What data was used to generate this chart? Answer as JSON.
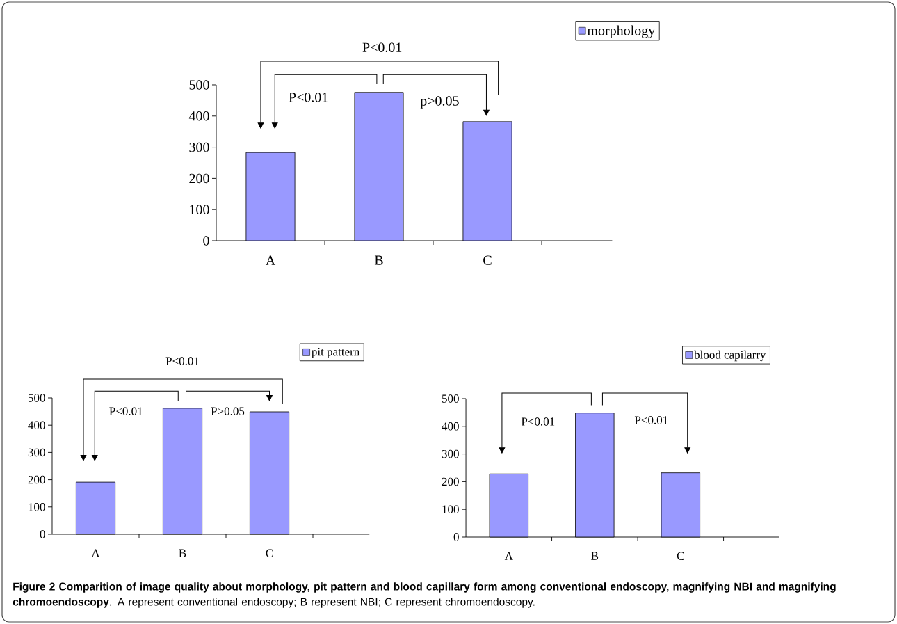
{
  "chart_data": [
    {
      "type": "bar",
      "categories": [
        "A",
        "B",
        "C"
      ],
      "series": [
        {
          "name": "morphology",
          "color": "#9999ff",
          "values": [
            283,
            476,
            382
          ]
        }
      ],
      "ylim": [
        0,
        500
      ],
      "yticks": [
        0,
        100,
        200,
        300,
        400,
        500
      ],
      "legend": "top right",
      "annotations": [
        "P<0.01",
        "P<0.01",
        "p>0.05",
        "**Figure 2 Comparition of image quality about morphology, pit pattern and blood capillary form among conventional endoscopy, magnifying NBI and magnifying chromoendoscopy**. A represent conventional endoscopy; B represent NBI; C represent chromoendoscopy."
      ]
    },
    {
      "type": "bar",
      "categories": [
        "A",
        "B",
        "C"
      ],
      "series": [
        {
          "name": "pit pattern",
          "color": "#9999ff",
          "values": [
            191,
            462,
            449
          ]
        }
      ],
      "ylim": [
        0,
        500
      ],
      "yticks": [
        0,
        100,
        200,
        300,
        400,
        500
      ],
      "legend": "top right",
      "annotations": [
        "P<0.01",
        "P<0.01",
        "P>0.05"
      ]
    },
    {
      "type": "bar",
      "categories": [
        "A",
        "B",
        "C"
      ],
      "series": [
        {
          "name": "blood capilarry",
          "color": "#9999ff",
          "values": [
            228,
            448,
            232
          ]
        }
      ],
      "ylim": [
        0,
        500
      ],
      "yticks": [
        0,
        100,
        200,
        300,
        400,
        500
      ],
      "legend": "top right",
      "annotations": [
        "P<0.01",
        "P<0.01"
      ]
    }
  ]
}
